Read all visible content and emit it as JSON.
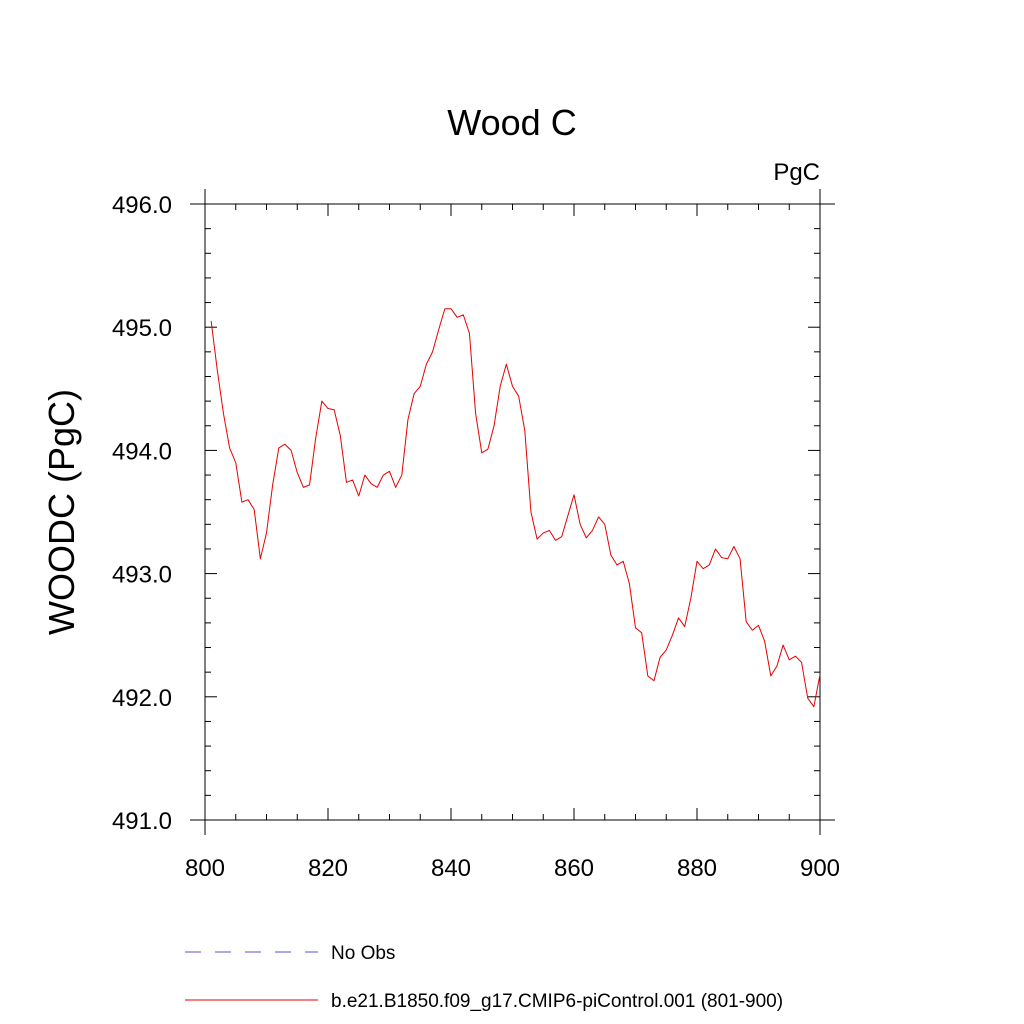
{
  "chart_data": {
    "type": "line",
    "title": "Wood C",
    "units_label": "PgC",
    "ylabel": "WOODC  (PgC)",
    "xlabel": "",
    "xlim": [
      800,
      900
    ],
    "ylim": [
      491.0,
      496.0
    ],
    "x_ticks": [
      "800",
      "820",
      "840",
      "860",
      "880",
      "900"
    ],
    "y_ticks": [
      "491.0",
      "492.0",
      "493.0",
      "494.0",
      "495.0",
      "496.0"
    ],
    "grid": false,
    "legend_position": "bottom",
    "series": [
      {
        "name": "No Obs",
        "color": "#5555cc",
        "dashed": true,
        "x": [],
        "values": []
      },
      {
        "name": "b.e21.B1850.f09_g17.CMIP6-piControl.001 (801-900)",
        "color": "#e60000",
        "dashed": false,
        "x": [
          801,
          802,
          803,
          804,
          805,
          806,
          807,
          808,
          809,
          810,
          811,
          812,
          813,
          814,
          815,
          816,
          817,
          818,
          819,
          820,
          821,
          822,
          823,
          824,
          825,
          826,
          827,
          828,
          829,
          830,
          831,
          832,
          833,
          834,
          835,
          836,
          837,
          838,
          839,
          840,
          841,
          842,
          843,
          844,
          845,
          846,
          847,
          848,
          849,
          850,
          851,
          852,
          853,
          854,
          855,
          856,
          857,
          858,
          859,
          860,
          861,
          862,
          863,
          864,
          865,
          866,
          867,
          868,
          869,
          870,
          871,
          872,
          873,
          874,
          875,
          876,
          877,
          878,
          879,
          880,
          881,
          882,
          883,
          884,
          885,
          886,
          887,
          888,
          889,
          890,
          891,
          892,
          893,
          894,
          895,
          896,
          897,
          898,
          899,
          900
        ],
        "values": [
          495.05,
          494.65,
          494.3,
          494.02,
          493.9,
          493.58,
          493.6,
          493.52,
          493.12,
          493.33,
          493.72,
          494.02,
          494.05,
          494.0,
          493.82,
          493.7,
          493.72,
          494.1,
          494.4,
          494.34,
          494.33,
          494.12,
          493.74,
          493.76,
          493.63,
          493.8,
          493.73,
          493.7,
          493.8,
          493.83,
          493.7,
          493.8,
          494.25,
          494.46,
          494.52,
          494.7,
          494.8,
          494.98,
          495.15,
          495.15,
          495.08,
          495.1,
          494.95,
          494.3,
          493.98,
          494.01,
          494.2,
          494.52,
          494.7,
          494.52,
          494.44,
          494.16,
          493.5,
          493.28,
          493.33,
          493.35,
          493.27,
          493.3,
          493.47,
          493.64,
          493.4,
          493.29,
          493.35,
          493.46,
          493.4,
          493.15,
          493.07,
          493.1,
          492.92,
          492.56,
          492.52,
          492.17,
          492.13,
          492.32,
          492.38,
          492.5,
          492.64,
          492.57,
          492.8,
          493.1,
          493.04,
          493.07,
          493.2,
          493.13,
          493.12,
          493.22,
          493.12,
          492.61,
          492.54,
          492.58,
          492.45,
          492.17,
          492.25,
          492.42,
          492.3,
          492.33,
          492.28,
          491.99,
          491.92,
          492.18
        ]
      }
    ]
  }
}
